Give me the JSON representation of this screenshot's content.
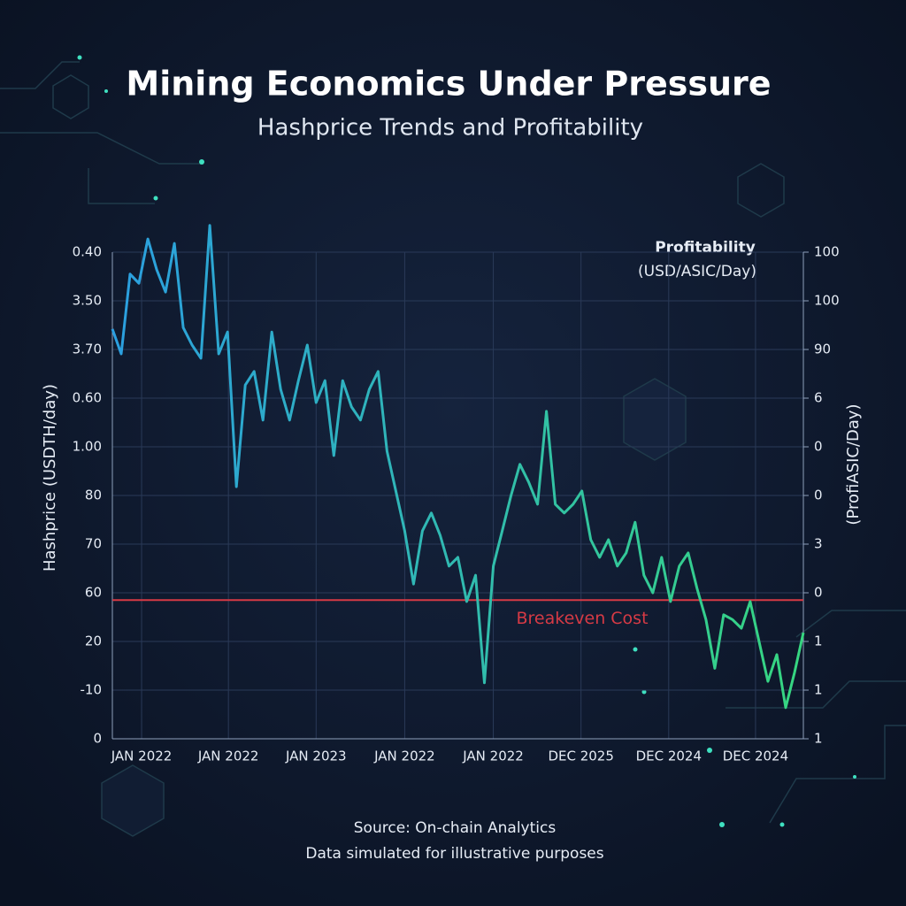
{
  "chart_data": {
    "type": "line",
    "title": "Mining Economics Under Pressure",
    "subtitle": "Hashprice Trends and Profitability",
    "y_label": "Hashprice (USDTH/day)",
    "y2_label": "(ProfiASIC/Day)",
    "y2_title": [
      "Profitability",
      "(USD/ASIC/Day)"
    ],
    "source": "Source: On-chain Analytics",
    "note": "Data simulated for illustrative purposes",
    "annotation": {
      "label": "Breakeven Cost",
      "value": 28.5,
      "color": "#d63a45"
    },
    "x": [
      0,
      1,
      2,
      3,
      4,
      5,
      6,
      7,
      8,
      9,
      10,
      11,
      12,
      13,
      14,
      15,
      16,
      17,
      18,
      19,
      20,
      21,
      22,
      23,
      24,
      25,
      26,
      27,
      28,
      29,
      30,
      31,
      32,
      33,
      34,
      35,
      36,
      37,
      38,
      39,
      40,
      41,
      42,
      43,
      44,
      45,
      46,
      47,
      48,
      49,
      50,
      51,
      52,
      53,
      54,
      55,
      56,
      57,
      58,
      59,
      60,
      61,
      62,
      63,
      64,
      65,
      66,
      67,
      68,
      69,
      70,
      71,
      72,
      73,
      74,
      75,
      76,
      77,
      78
    ],
    "series": [
      {
        "colors": [
          "#2b9fe0",
          "#36d680"
        ],
        "values": [
          84.2,
          79.1,
          95.5,
          93.6,
          102.7,
          96.4,
          91.8,
          101.8,
          84.5,
          80.9,
          78.2,
          105.5,
          79.1,
          83.6,
          51.8,
          72.7,
          75.5,
          65.5,
          83.6,
          71.8,
          65.5,
          73.6,
          80.9,
          69.1,
          73.6,
          58.2,
          73.6,
          68.2,
          65.5,
          71.8,
          75.5,
          59.1,
          50.9,
          42.7,
          31.8,
          42.7,
          46.4,
          41.8,
          35.5,
          37.3,
          28.2,
          33.6,
          11.5,
          35.5,
          42.7,
          50.0,
          56.4,
          52.7,
          48.2,
          67.3,
          48.2,
          46.4,
          48.2,
          50.9,
          40.9,
          37.3,
          40.9,
          35.5,
          38.2,
          44.5,
          33.6,
          30.0,
          37.3,
          28.2,
          35.5,
          38.2,
          30.9,
          24.5,
          14.5,
          25.5,
          24.5,
          22.7,
          28.2,
          20.0,
          11.8,
          17.3,
          6.4,
          13.6,
          21.8
        ]
      }
    ],
    "xlim": [
      0,
      78
    ],
    "xticks": [
      {
        "value": 3.3,
        "label": "JAN 2022"
      },
      {
        "value": 13.1,
        "label": "JAN 2022"
      },
      {
        "value": 23,
        "label": "JAN 2023"
      },
      {
        "value": 33,
        "label": "JAN 2022"
      },
      {
        "value": 43,
        "label": "JAN 2022"
      },
      {
        "value": 52.9,
        "label": "DEC 2025"
      },
      {
        "value": 62.8,
        "label": "DEC 2024"
      },
      {
        "value": 72.6,
        "label": "DEC 2024"
      }
    ],
    "ylim": [
      0,
      100
    ],
    "yticks": [
      0,
      {
        "value": 10,
        "label": "-10"
      },
      20,
      {
        "value": 30,
        "label": "60"
      },
      {
        "value": 40,
        "label": "70"
      },
      {
        "value": 50,
        "label": "80"
      },
      {
        "value": 60,
        "label": "1.00"
      },
      {
        "value": 70,
        "label": "0.60"
      },
      {
        "value": 80,
        "label": "3.70"
      },
      {
        "value": 90,
        "label": "3.50"
      },
      {
        "value": 100,
        "label": "0.40"
      }
    ],
    "y2lim": [
      0,
      100
    ],
    "y2ticks": [
      {
        "value": 0,
        "label": "1"
      },
      {
        "value": 10,
        "label": "1"
      },
      {
        "value": 20,
        "label": "1"
      },
      {
        "value": 30,
        "label": "0"
      },
      {
        "value": 40,
        "label": "3"
      },
      {
        "value": 50,
        "label": "0"
      },
      {
        "value": 60,
        "label": "0"
      },
      {
        "value": 70,
        "label": "6"
      },
      {
        "value": 80,
        "label": "90"
      },
      {
        "value": 90,
        "label": "100"
      },
      100
    ],
    "grid": true
  }
}
